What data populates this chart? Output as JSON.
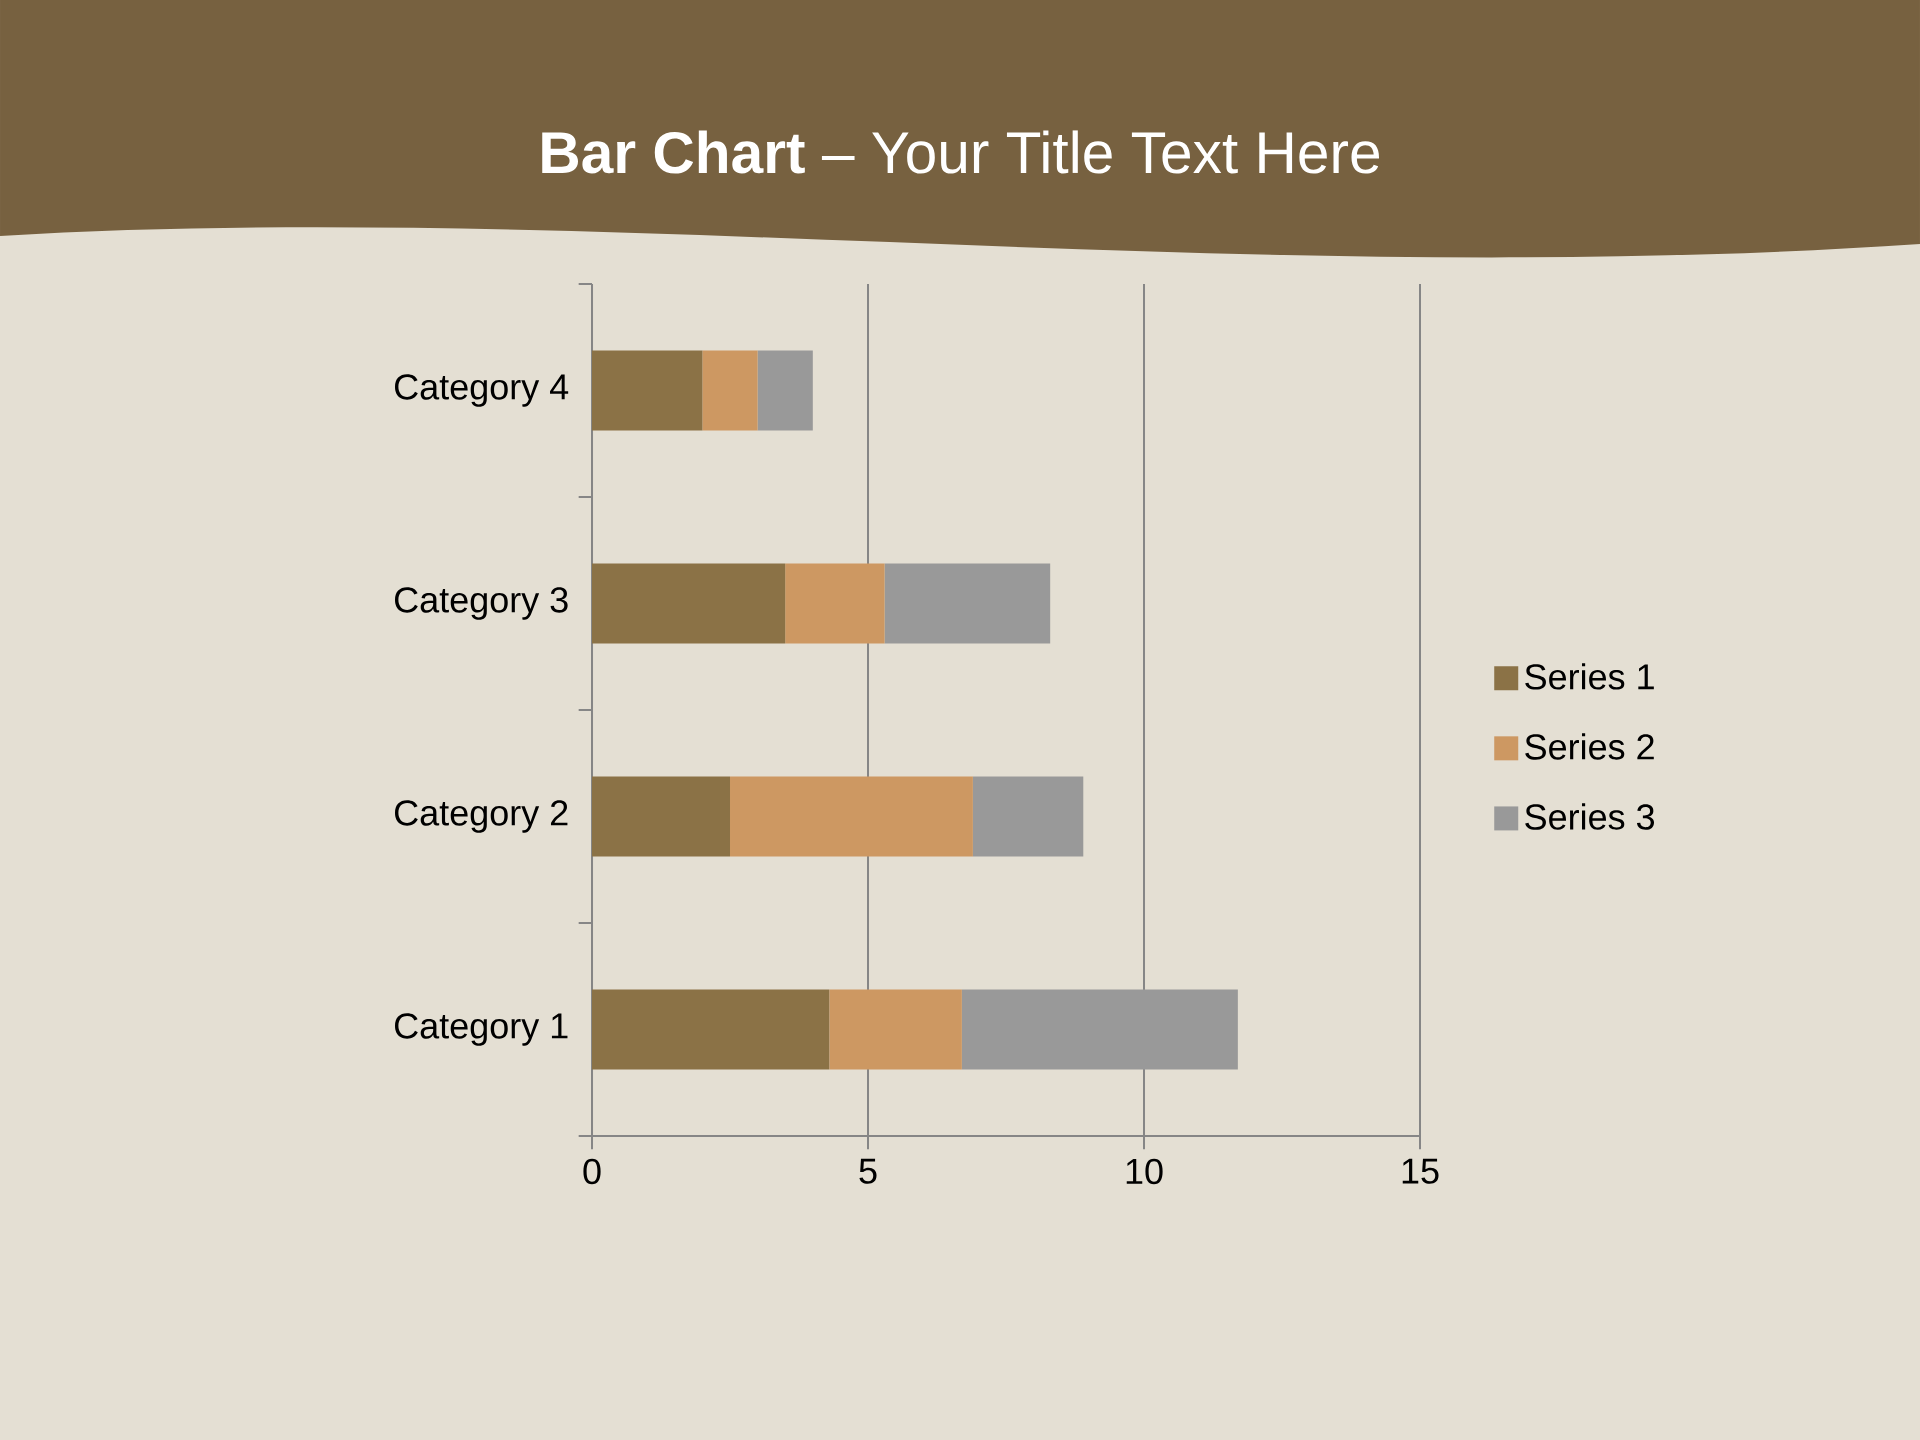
{
  "chart_data": {
    "type": "bar",
    "orientation": "horizontal",
    "stacked": true,
    "title": "**Bar Chart** – Your Title Text Here",
    "categories": [
      "Category 4",
      "Category 3",
      "Category 2",
      "Category 1"
    ],
    "series": [
      {
        "name": "Series 1",
        "color": "#8b7246",
        "values": [
          2,
          3.5,
          2.5,
          4.3
        ]
      },
      {
        "name": "Series 2",
        "color": "#cd9862",
        "values": [
          1,
          1.8,
          4.4,
          2.4
        ]
      },
      {
        "name": "Series 3",
        "color": "#999999",
        "values": [
          1,
          3,
          2,
          5
        ]
      }
    ],
    "xlim": [
      0,
      15
    ],
    "xticks": [
      0,
      5,
      10,
      15
    ],
    "grid": "x",
    "legend": "right"
  }
}
